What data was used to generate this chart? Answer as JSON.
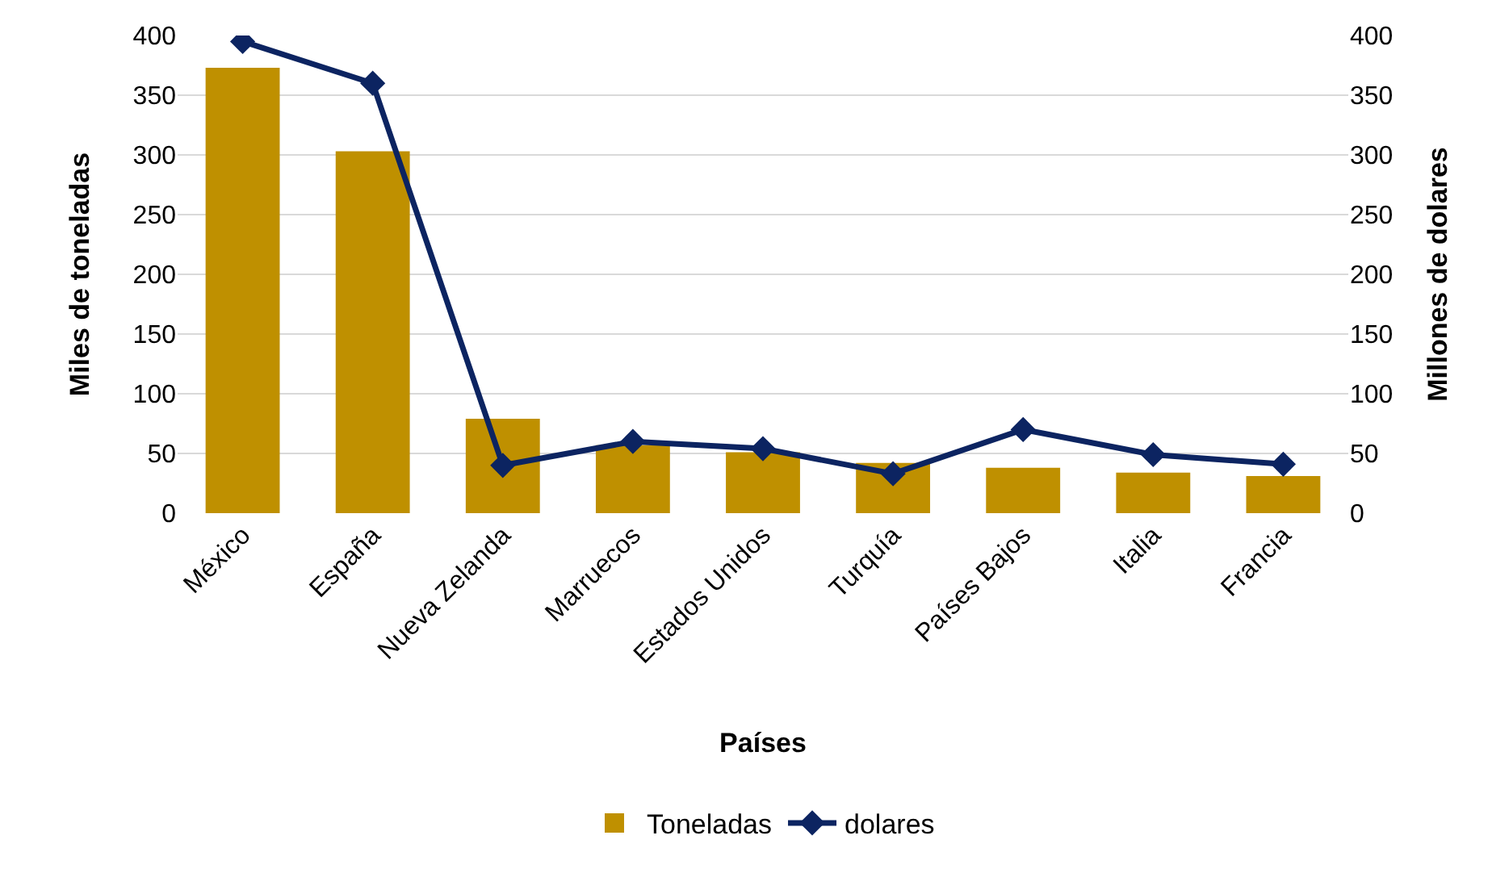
{
  "chart_data": {
    "type": "bar",
    "xlabel": "Países",
    "ylabel": "Miles de toneladas",
    "y2label": "Millones de dolares",
    "categories": [
      "México",
      "España",
      "Nueva Zelanda",
      "Marruecos",
      "Estados Unidos",
      "Turquía",
      "Países Bajos",
      "Italia",
      "Francia"
    ],
    "series": [
      {
        "name": "Toneladas",
        "color": "#bf9000",
        "values": [
          373,
          303,
          79,
          57,
          51,
          42,
          38,
          34,
          31
        ]
      },
      {
        "name": "dolares",
        "type": "line",
        "axis": "y2",
        "color": "#0c2461",
        "marker": "diamond",
        "values": [
          395,
          360,
          40,
          60,
          54,
          33,
          70,
          49,
          41
        ]
      }
    ],
    "ylim": [
      0,
      400
    ],
    "yticks": [
      0,
      50,
      100,
      150,
      200,
      250,
      300,
      350,
      400
    ],
    "y2lim": [
      0,
      400
    ],
    "y2ticks": [
      0,
      50,
      100,
      150,
      200,
      250,
      300,
      350,
      400
    ],
    "grid": "y",
    "legend": "bottom"
  }
}
